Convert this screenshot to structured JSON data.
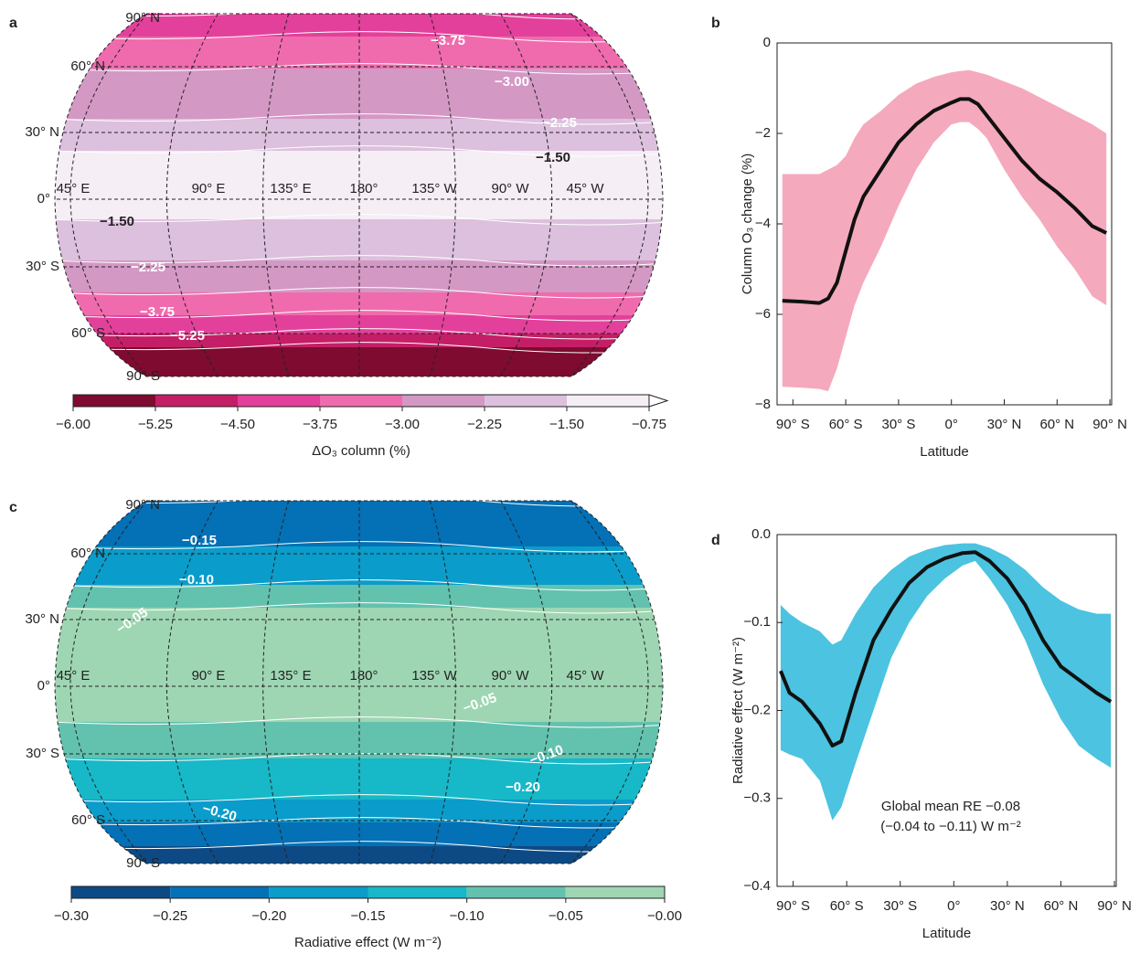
{
  "chart_data": [
    {
      "type": "map",
      "panel_label": "a",
      "latitude_labels": [
        "90° N",
        "60° N",
        "30° N",
        "0°",
        "30° S",
        "60° S",
        "90° S"
      ],
      "longitude_labels": [
        "45° E",
        "90° E",
        "135° E",
        "180°",
        "135° W",
        "90° W",
        "45° W"
      ],
      "contour_labels": [
        "−3.75",
        "−3.00",
        "−2.25",
        "−1.50",
        "−1.50",
        "−2.25",
        "−3.75",
        "−5.25"
      ],
      "colorbar": {
        "label": "ΔO₃ column (%)",
        "colors": [
          "#7f0b30",
          "#c41f66",
          "#e3409b",
          "#f06bad",
          "#d498c5",
          "#dcc0dd",
          "#f5eef5"
        ],
        "lim": [
          -6,
          -0.75
        ],
        "extend": "max",
        "ticks": [
          {
            "value": -6,
            "label": "−6.00"
          },
          {
            "value": -5.25,
            "label": "−5.25"
          },
          {
            "value": -4.5,
            "label": "−4.50"
          },
          {
            "value": -3.75,
            "label": "−3.75"
          },
          {
            "value": -3,
            "label": "−3.00"
          },
          {
            "value": -2.25,
            "label": "−2.25"
          },
          {
            "value": -1.5,
            "label": "−1.50"
          },
          {
            "value": -0.75,
            "label": "−0.75"
          }
        ]
      }
    },
    {
      "type": "line",
      "panel_label": "b",
      "xlabel": "Latitude",
      "ylabel": "Column O₃ change (%)",
      "color": "#111111",
      "band_color": "#f5a9bd",
      "x": [
        -96,
        -85,
        -75,
        -70,
        -65,
        -60,
        -55,
        -50,
        -40,
        -30,
        -20,
        -10,
        0,
        5,
        10,
        15,
        20,
        30,
        40,
        50,
        60,
        70,
        80,
        88
      ],
      "values": [
        -5.7,
        -5.72,
        -5.75,
        -5.65,
        -5.3,
        -4.6,
        -3.9,
        -3.4,
        -2.8,
        -2.2,
        -1.8,
        -1.5,
        -1.32,
        -1.24,
        -1.24,
        -1.35,
        -1.6,
        -2.1,
        -2.6,
        -3.0,
        -3.3,
        -3.65,
        -4.05,
        -4.2
      ],
      "upper": [
        -2.9,
        -2.9,
        -2.9,
        -2.8,
        -2.7,
        -2.5,
        -2.1,
        -1.8,
        -1.5,
        -1.15,
        -0.9,
        -0.75,
        -0.65,
        -0.62,
        -0.6,
        -0.65,
        -0.7,
        -0.85,
        -1.0,
        -1.2,
        -1.4,
        -1.6,
        -1.8,
        -2.0
      ],
      "lower": [
        -7.6,
        -7.62,
        -7.65,
        -7.7,
        -7.2,
        -6.5,
        -5.8,
        -5.3,
        -4.5,
        -3.6,
        -2.8,
        -2.2,
        -1.8,
        -1.75,
        -1.75,
        -1.9,
        -2.1,
        -2.8,
        -3.4,
        -3.9,
        -4.5,
        -5.0,
        -5.6,
        -5.8
      ],
      "xlim": [
        -99,
        91
      ],
      "ylim": [
        -8,
        0
      ],
      "xticks": [
        {
          "value": -90,
          "label": "90° S"
        },
        {
          "value": -60,
          "label": "60° S"
        },
        {
          "value": -30,
          "label": "30° S"
        },
        {
          "value": 0,
          "label": "0°"
        },
        {
          "value": 30,
          "label": "30° N"
        },
        {
          "value": 60,
          "label": "60° N"
        },
        {
          "value": 90,
          "label": "90° N"
        }
      ],
      "yticks": [
        {
          "value": -8,
          "label": "−8"
        },
        {
          "value": -6,
          "label": "−6"
        },
        {
          "value": -4,
          "label": "−4"
        },
        {
          "value": -2,
          "label": "−2"
        },
        0
      ]
    },
    {
      "type": "map",
      "panel_label": "c",
      "latitude_labels": [
        "90° N",
        "60° N",
        "30° N",
        "0°",
        "30° S",
        "60° S",
        "90° S"
      ],
      "longitude_labels": [
        "45° E",
        "90° E",
        "135° E",
        "180°",
        "135° W",
        "90° W",
        "45° W"
      ],
      "contour_labels": [
        "−0.15",
        "−0.10",
        "−0.05",
        "−0.05",
        "−0.10",
        "−0.20",
        "−0.20"
      ],
      "colorbar": {
        "label": "Radiative effect (W m⁻²)",
        "colors": [
          "#0d4a85",
          "#0470b5",
          "#0a9cca",
          "#17b8c8",
          "#63c2ae",
          "#9ed6b3"
        ],
        "lim": [
          -0.3,
          0
        ],
        "ticks": [
          {
            "value": -0.3,
            "label": "−0.30"
          },
          {
            "value": -0.25,
            "label": "−0.25"
          },
          {
            "value": -0.2,
            "label": "−0.20"
          },
          {
            "value": -0.15,
            "label": "−0.15"
          },
          {
            "value": -0.1,
            "label": "−0.10"
          },
          {
            "value": -0.05,
            "label": "−0.05"
          },
          {
            "value": 0,
            "label": "−0.00"
          }
        ]
      }
    },
    {
      "type": "line",
      "panel_label": "d",
      "xlabel": "Latitude",
      "ylabel": "Radiative effect (W m⁻²)",
      "color": "#111111",
      "band_color": "#4cc3e0",
      "annotation": [
        "Global mean RE −0.08",
        "(−0.04 to −0.11) W m⁻²"
      ],
      "x": [
        -97,
        -92,
        -85,
        -75,
        -68,
        -63,
        -55,
        -45,
        -35,
        -25,
        -15,
        -5,
        5,
        12,
        20,
        30,
        40,
        50,
        60,
        70,
        80,
        88
      ],
      "values": [
        -0.155,
        -0.18,
        -0.19,
        -0.215,
        -0.24,
        -0.235,
        -0.18,
        -0.12,
        -0.085,
        -0.055,
        -0.037,
        -0.027,
        -0.021,
        -0.02,
        -0.03,
        -0.05,
        -0.08,
        -0.12,
        -0.15,
        -0.165,
        -0.18,
        -0.19
      ],
      "upper": [
        -0.08,
        -0.09,
        -0.1,
        -0.11,
        -0.125,
        -0.12,
        -0.09,
        -0.06,
        -0.04,
        -0.025,
        -0.017,
        -0.012,
        -0.01,
        -0.01,
        -0.015,
        -0.025,
        -0.04,
        -0.06,
        -0.075,
        -0.085,
        -0.09,
        -0.09
      ],
      "lower": [
        -0.245,
        -0.25,
        -0.255,
        -0.28,
        -0.325,
        -0.31,
        -0.26,
        -0.2,
        -0.14,
        -0.1,
        -0.07,
        -0.05,
        -0.035,
        -0.03,
        -0.05,
        -0.08,
        -0.12,
        -0.17,
        -0.21,
        -0.24,
        -0.255,
        -0.265
      ],
      "xlim": [
        -99,
        91
      ],
      "ylim": [
        -0.4,
        0
      ],
      "xticks": [
        {
          "value": -90,
          "label": "90° S"
        },
        {
          "value": -60,
          "label": "60° S"
        },
        {
          "value": -30,
          "label": "30° S"
        },
        {
          "value": 0,
          "label": "0°"
        },
        {
          "value": 30,
          "label": "30° N"
        },
        {
          "value": 60,
          "label": "60° N"
        },
        {
          "value": 90,
          "label": "90° N"
        }
      ],
      "yticks": [
        {
          "value": -0.4,
          "label": "−0.4"
        },
        {
          "value": -0.3,
          "label": "−0.3"
        },
        {
          "value": -0.2,
          "label": "−0.2"
        },
        {
          "value": -0.1,
          "label": "−0.1"
        },
        {
          "value": 0,
          "label": "0.0"
        }
      ]
    }
  ]
}
